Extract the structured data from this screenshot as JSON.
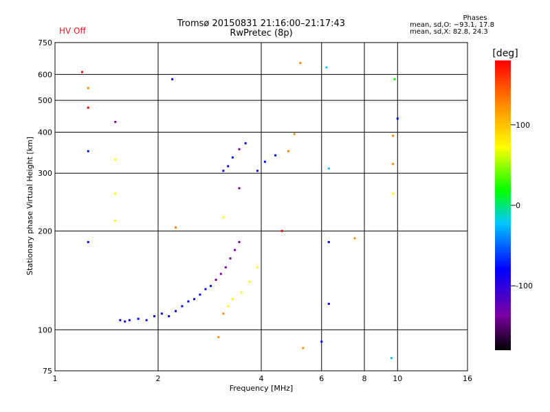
{
  "header": {
    "status": "HV Off",
    "title_line1": "Tromsø 20150831 21:16:00–21:17:43",
    "title_line2": "RwPretec (8p)",
    "phase_title": "Phases",
    "phase_o": "mean, sd,O: −93.1, 17.8",
    "phase_x": "mean, sd,X:  82.8, 24.3"
  },
  "colors": {
    "status": "#e0191d",
    "colorbar": [
      "#000000",
      "#7a00a0",
      "#0000ff",
      "#00c8ff",
      "#00ff00",
      "#ffff00",
      "#ff8800",
      "#ff0000"
    ]
  },
  "chart_data": {
    "type": "scatter",
    "xlabel": "Frequency [MHz]",
    "ylabel": "Stationary phase Virtual Height [km]",
    "x_scale": "log",
    "y_scale": "log",
    "xlim": [
      1,
      16
    ],
    "ylim": [
      75,
      750
    ],
    "x_ticks": [
      1,
      2,
      4,
      6,
      8,
      10,
      16
    ],
    "y_ticks": [
      75,
      100,
      200,
      300,
      400,
      500,
      600,
      750
    ],
    "grid": true,
    "colorbar": {
      "label": "[deg]",
      "range": [
        -180,
        180
      ],
      "ticks": [
        100,
        0,
        -100
      ]
    },
    "series": [
      {
        "values": [
          {
            "x": 1.55,
            "y": 107,
            "c": -100
          },
          {
            "x": 1.6,
            "y": 106,
            "c": -100
          },
          {
            "x": 1.65,
            "y": 107,
            "c": -100
          },
          {
            "x": 1.75,
            "y": 108,
            "c": -100
          },
          {
            "x": 1.85,
            "y": 107,
            "c": -100
          },
          {
            "x": 1.95,
            "y": 110,
            "c": -100
          },
          {
            "x": 2.05,
            "y": 112,
            "c": -100
          },
          {
            "x": 2.15,
            "y": 110,
            "c": -100
          },
          {
            "x": 2.25,
            "y": 114,
            "c": -100
          },
          {
            "x": 2.35,
            "y": 118,
            "c": -100
          },
          {
            "x": 2.45,
            "y": 122,
            "c": -100
          },
          {
            "x": 2.55,
            "y": 124,
            "c": -100
          },
          {
            "x": 2.65,
            "y": 128,
            "c": -100
          },
          {
            "x": 2.75,
            "y": 133,
            "c": -100
          },
          {
            "x": 2.85,
            "y": 136,
            "c": -100
          },
          {
            "x": 2.95,
            "y": 142,
            "c": -110
          },
          {
            "x": 3.05,
            "y": 148,
            "c": -120
          },
          {
            "x": 3.15,
            "y": 155,
            "c": -130
          },
          {
            "x": 3.25,
            "y": 165,
            "c": -140
          },
          {
            "x": 3.35,
            "y": 175,
            "c": -150
          },
          {
            "x": 3.45,
            "y": 185,
            "c": -150
          }
        ]
      },
      {
        "values": [
          {
            "x": 3.1,
            "y": 112,
            "c": 110
          },
          {
            "x": 3.2,
            "y": 118,
            "c": 100
          },
          {
            "x": 3.3,
            "y": 124,
            "c": 90
          },
          {
            "x": 3.5,
            "y": 130,
            "c": 80
          },
          {
            "x": 3.7,
            "y": 140,
            "c": 80
          },
          {
            "x": 3.9,
            "y": 155,
            "c": 70
          }
        ]
      },
      {
        "values": [
          {
            "x": 3.1,
            "y": 305,
            "c": -100
          },
          {
            "x": 3.2,
            "y": 315,
            "c": -100
          },
          {
            "x": 3.3,
            "y": 335,
            "c": -100
          },
          {
            "x": 3.45,
            "y": 355,
            "c": -110
          },
          {
            "x": 3.6,
            "y": 370,
            "c": -100
          },
          {
            "x": 3.9,
            "y": 305,
            "c": -100
          },
          {
            "x": 4.1,
            "y": 325,
            "c": -100
          },
          {
            "x": 4.4,
            "y": 340,
            "c": -100
          },
          {
            "x": 4.8,
            "y": 350,
            "c": 110
          },
          {
            "x": 5.0,
            "y": 395,
            "c": 130
          },
          {
            "x": 3.45,
            "y": 270,
            "c": -120
          }
        ]
      },
      {
        "values": [
          {
            "x": 1.5,
            "y": 430,
            "c": -140
          },
          {
            "x": 1.5,
            "y": 330,
            "c": 70
          },
          {
            "x": 1.5,
            "y": 260,
            "c": 80
          },
          {
            "x": 1.5,
            "y": 215,
            "c": 80
          },
          {
            "x": 1.25,
            "y": 350,
            "c": -100
          },
          {
            "x": 1.25,
            "y": 185,
            "c": -100
          },
          {
            "x": 1.25,
            "y": 545,
            "c": 140
          },
          {
            "x": 1.25,
            "y": 475,
            "c": 170
          },
          {
            "x": 1.2,
            "y": 610,
            "c": 170
          },
          {
            "x": 6.3,
            "y": 310,
            "c": -40
          },
          {
            "x": 6.3,
            "y": 185,
            "c": -100
          },
          {
            "x": 6.3,
            "y": 120,
            "c": -100
          },
          {
            "x": 9.7,
            "y": 390,
            "c": 120
          },
          {
            "x": 9.7,
            "y": 320,
            "c": 130
          },
          {
            "x": 9.7,
            "y": 260,
            "c": 90
          },
          {
            "x": 9.8,
            "y": 580,
            "c": 40
          },
          {
            "x": 10.0,
            "y": 440,
            "c": -100
          },
          {
            "x": 2.2,
            "y": 580,
            "c": -100
          },
          {
            "x": 2.25,
            "y": 205,
            "c": 150
          },
          {
            "x": 3.1,
            "y": 220,
            "c": 80
          },
          {
            "x": 5.2,
            "y": 650,
            "c": 130
          },
          {
            "x": 6.2,
            "y": 630,
            "c": -30
          },
          {
            "x": 5.3,
            "y": 88,
            "c": 110
          },
          {
            "x": 6.0,
            "y": 92,
            "c": -100
          },
          {
            "x": 9.6,
            "y": 82,
            "c": -10
          },
          {
            "x": 3.0,
            "y": 95,
            "c": 120
          },
          {
            "x": 7.5,
            "y": 190,
            "c": 150
          },
          {
            "x": 4.6,
            "y": 200,
            "c": 160
          }
        ]
      }
    ]
  }
}
